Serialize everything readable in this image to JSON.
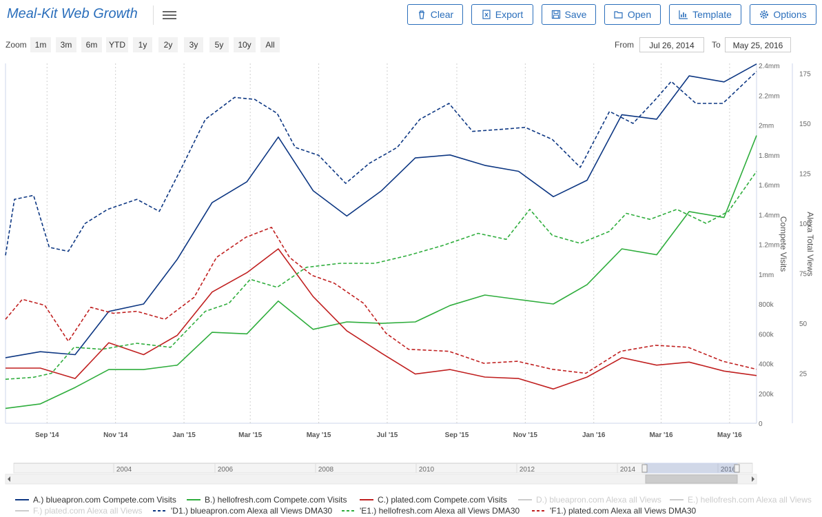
{
  "app": {
    "title": "Meal-Kit Web Growth"
  },
  "toolbar": {
    "buttons": [
      {
        "label": "Clear",
        "icon": "trash-icon"
      },
      {
        "label": "Export",
        "icon": "excel-file-icon"
      },
      {
        "label": "Save",
        "icon": "floppy-disk-icon"
      },
      {
        "label": "Open",
        "icon": "folder-open-icon"
      },
      {
        "label": "Template",
        "icon": "bar-chart-icon"
      },
      {
        "label": "Options",
        "icon": "gear-icon"
      }
    ]
  },
  "zoom": {
    "label": "Zoom",
    "options": [
      "1m",
      "3m",
      "6m",
      "YTD",
      "1y",
      "2y",
      "3y",
      "5y",
      "10y",
      "All"
    ],
    "from_label": "From",
    "from_value": "Jul 26, 2014",
    "to_label": "To",
    "to_value": "May 25, 2016"
  },
  "colors": {
    "accent": "#2a6ebb",
    "blue": "#0c3682",
    "green": "#2ead3c",
    "red": "#c01f1f",
    "grid": "#dddddd"
  },
  "chart_data": {
    "type": "line",
    "x_ticks": [
      "Sep '14",
      "Nov '14",
      "Jan '15",
      "Mar '15",
      "May '15",
      "Jul '15",
      "Sep '15",
      "Nov '15",
      "Jan '16",
      "Mar '16",
      "May '16"
    ],
    "y_left": {
      "label": "Compete Visits",
      "ticks": [
        "0",
        "200k",
        "400k",
        "600k",
        "800k",
        "1mm",
        "1.2mm",
        "1.4mm",
        "1.6mm",
        "1.8mm",
        "2mm",
        "2.2mm",
        "2.4mm"
      ],
      "range": [
        0,
        2400000
      ]
    },
    "y_right": {
      "label": "Alexa Total Views",
      "ticks": [
        "25",
        "50",
        "75",
        "100",
        "125",
        "150",
        "175"
      ],
      "range": [
        0,
        180
      ]
    },
    "navigator": {
      "years": [
        "2004",
        "2006",
        "2008",
        "2010",
        "2012",
        "2014",
        "2016"
      ]
    },
    "series": [
      {
        "name": "A.) blueapron.com Compete.com Visits",
        "axis": "left",
        "style": "solid",
        "color": "#0c3682",
        "points": [
          [
            "2014-07-26",
            440000
          ],
          [
            "2014-08-26",
            480000
          ],
          [
            "2014-09-26",
            460000
          ],
          [
            "2014-10-26",
            750000
          ],
          [
            "2014-11-26",
            800000
          ],
          [
            "2014-12-26",
            1100000
          ],
          [
            "2015-01-26",
            1480000
          ],
          [
            "2015-02-26",
            1620000
          ],
          [
            "2015-03-26",
            1920000
          ],
          [
            "2015-04-26",
            1560000
          ],
          [
            "2015-05-26",
            1390000
          ],
          [
            "2015-06-26",
            1560000
          ],
          [
            "2015-07-26",
            1780000
          ],
          [
            "2015-08-26",
            1800000
          ],
          [
            "2015-09-26",
            1730000
          ],
          [
            "2015-10-26",
            1690000
          ],
          [
            "2015-11-26",
            1520000
          ],
          [
            "2015-12-26",
            1630000
          ],
          [
            "2016-01-26",
            2070000
          ],
          [
            "2016-02-26",
            2040000
          ],
          [
            "2016-03-26",
            2330000
          ],
          [
            "2016-04-26",
            2290000
          ],
          [
            "2016-05-25",
            2410000
          ]
        ]
      },
      {
        "name": "B.) hellofresh.com Compete.com Visits",
        "axis": "left",
        "style": "solid",
        "color": "#2ead3c",
        "points": [
          [
            "2014-07-26",
            100000
          ],
          [
            "2014-08-26",
            130000
          ],
          [
            "2014-09-26",
            240000
          ],
          [
            "2014-10-26",
            360000
          ],
          [
            "2014-11-26",
            360000
          ],
          [
            "2014-12-26",
            390000
          ],
          [
            "2015-01-26",
            610000
          ],
          [
            "2015-02-26",
            600000
          ],
          [
            "2015-03-26",
            820000
          ],
          [
            "2015-04-26",
            630000
          ],
          [
            "2015-05-26",
            680000
          ],
          [
            "2015-06-26",
            670000
          ],
          [
            "2015-07-26",
            680000
          ],
          [
            "2015-08-26",
            790000
          ],
          [
            "2015-09-26",
            860000
          ],
          [
            "2015-10-26",
            830000
          ],
          [
            "2015-11-26",
            800000
          ],
          [
            "2015-12-26",
            930000
          ],
          [
            "2016-01-26",
            1170000
          ],
          [
            "2016-02-26",
            1130000
          ],
          [
            "2016-03-26",
            1420000
          ],
          [
            "2016-04-26",
            1380000
          ],
          [
            "2016-05-25",
            1930000
          ]
        ]
      },
      {
        "name": "C.) plated.com Compete.com Visits",
        "axis": "left",
        "style": "solid",
        "color": "#c01f1f",
        "points": [
          [
            "2014-07-26",
            370000
          ],
          [
            "2014-08-26",
            370000
          ],
          [
            "2014-09-26",
            300000
          ],
          [
            "2014-10-26",
            540000
          ],
          [
            "2014-11-26",
            460000
          ],
          [
            "2014-12-26",
            590000
          ],
          [
            "2015-01-26",
            880000
          ],
          [
            "2015-02-26",
            1010000
          ],
          [
            "2015-03-26",
            1170000
          ],
          [
            "2015-04-26",
            850000
          ],
          [
            "2015-05-26",
            620000
          ],
          [
            "2015-06-26",
            470000
          ],
          [
            "2015-07-26",
            330000
          ],
          [
            "2015-08-26",
            360000
          ],
          [
            "2015-09-26",
            310000
          ],
          [
            "2015-10-26",
            300000
          ],
          [
            "2015-11-26",
            230000
          ],
          [
            "2015-12-26",
            310000
          ],
          [
            "2016-01-26",
            440000
          ],
          [
            "2016-02-26",
            390000
          ],
          [
            "2016-03-26",
            410000
          ],
          [
            "2016-04-26",
            350000
          ],
          [
            "2016-05-25",
            320000
          ]
        ]
      },
      {
        "name": "'D1.) blueapron.com Alexa all Views DMA30",
        "axis": "right",
        "style": "dashed",
        "color": "#0c3682",
        "points": [
          [
            "2014-07-26",
            84
          ],
          [
            "2014-08-03",
            112
          ],
          [
            "2014-08-20",
            114
          ],
          [
            "2014-09-03",
            88
          ],
          [
            "2014-09-20",
            86
          ],
          [
            "2014-10-05",
            100
          ],
          [
            "2014-10-25",
            107
          ],
          [
            "2014-11-20",
            112
          ],
          [
            "2014-12-10",
            106
          ],
          [
            "2014-12-30",
            128
          ],
          [
            "2015-01-20",
            152
          ],
          [
            "2015-02-15",
            163
          ],
          [
            "2015-03-05",
            162
          ],
          [
            "2015-03-25",
            155
          ],
          [
            "2015-04-10",
            138
          ],
          [
            "2015-05-01",
            134
          ],
          [
            "2015-05-25",
            120
          ],
          [
            "2015-06-15",
            130
          ],
          [
            "2015-07-10",
            138
          ],
          [
            "2015-07-30",
            152
          ],
          [
            "2015-08-25",
            160
          ],
          [
            "2015-09-15",
            146
          ],
          [
            "2015-10-10",
            147
          ],
          [
            "2015-11-01",
            148
          ],
          [
            "2015-11-25",
            142
          ],
          [
            "2015-12-20",
            128
          ],
          [
            "2016-01-15",
            156
          ],
          [
            "2016-02-05",
            150
          ],
          [
            "2016-02-25",
            162
          ],
          [
            "2016-03-10",
            171
          ],
          [
            "2016-04-01",
            160
          ],
          [
            "2016-04-25",
            160
          ],
          [
            "2016-05-25",
            176
          ]
        ]
      },
      {
        "name": "'E1.) hellofresh.com Alexa all Views DMA30",
        "axis": "right",
        "style": "dashed",
        "color": "#2ead3c",
        "points": [
          [
            "2014-07-26",
            22
          ],
          [
            "2014-08-20",
            23
          ],
          [
            "2014-09-05",
            25
          ],
          [
            "2014-09-25",
            38
          ],
          [
            "2014-10-20",
            37
          ],
          [
            "2014-11-20",
            40
          ],
          [
            "2014-12-20",
            38
          ],
          [
            "2015-01-20",
            56
          ],
          [
            "2015-02-10",
            60
          ],
          [
            "2015-03-01",
            72
          ],
          [
            "2015-03-25",
            68
          ],
          [
            "2015-04-20",
            78
          ],
          [
            "2015-05-20",
            80
          ],
          [
            "2015-06-20",
            80
          ],
          [
            "2015-07-20",
            84
          ],
          [
            "2015-08-20",
            89
          ],
          [
            "2015-09-20",
            95
          ],
          [
            "2015-10-15",
            92
          ],
          [
            "2015-11-05",
            107
          ],
          [
            "2015-11-25",
            94
          ],
          [
            "2015-12-20",
            90
          ],
          [
            "2016-01-15",
            96
          ],
          [
            "2016-01-30",
            105
          ],
          [
            "2016-02-20",
            102
          ],
          [
            "2016-03-15",
            107
          ],
          [
            "2016-04-10",
            100
          ],
          [
            "2016-04-30",
            106
          ],
          [
            "2016-05-25",
            126
          ]
        ]
      },
      {
        "name": "'F1.) plated.com Alexa all Views DMA30",
        "axis": "right",
        "style": "dashed",
        "color": "#c01f1f",
        "points": [
          [
            "2014-07-26",
            52
          ],
          [
            "2014-08-10",
            62
          ],
          [
            "2014-08-30",
            59
          ],
          [
            "2014-09-20",
            41
          ],
          [
            "2014-10-10",
            58
          ],
          [
            "2014-10-30",
            55
          ],
          [
            "2014-11-20",
            56
          ],
          [
            "2014-12-15",
            52
          ],
          [
            "2015-01-10",
            63
          ],
          [
            "2015-01-30",
            83
          ],
          [
            "2015-02-25",
            93
          ],
          [
            "2015-03-20",
            98
          ],
          [
            "2015-04-05",
            83
          ],
          [
            "2015-04-25",
            74
          ],
          [
            "2015-05-15",
            70
          ],
          [
            "2015-06-10",
            60
          ],
          [
            "2015-06-30",
            45
          ],
          [
            "2015-07-20",
            37
          ],
          [
            "2015-08-25",
            36
          ],
          [
            "2015-09-25",
            30
          ],
          [
            "2015-10-25",
            31
          ],
          [
            "2015-11-25",
            27
          ],
          [
            "2015-12-25",
            25
          ],
          [
            "2016-01-25",
            36
          ],
          [
            "2016-02-25",
            39
          ],
          [
            "2016-03-25",
            38
          ],
          [
            "2016-04-25",
            31
          ],
          [
            "2016-05-25",
            27
          ]
        ]
      }
    ],
    "hidden_series": [
      "D.) blueapron.com Alexa all Views",
      "E.) hellofresh.com Alexa all Views",
      "F.) plated.com Alexa all Views"
    ],
    "legend_position": "bottom",
    "grid": "vertical dotted"
  }
}
